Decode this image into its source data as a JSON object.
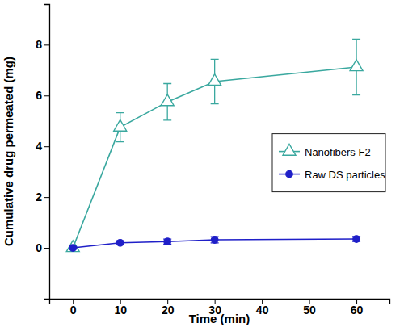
{
  "chart_data": {
    "type": "line",
    "x_label": "Time (min)",
    "y_label": "Cumulative drug permeated (mg)",
    "x": [
      0,
      10,
      20,
      30,
      60
    ],
    "xlim": [
      -5,
      67
    ],
    "xticks": [
      0,
      10,
      20,
      30,
      40,
      50,
      60
    ],
    "ylim": [
      -2,
      9.6
    ],
    "yticks": [
      0,
      2,
      4,
      6,
      8
    ],
    "legend": "right",
    "series": [
      {
        "name": "Nanofibers F2",
        "color": "#3aa89f",
        "marker": "triangle-open",
        "values": [
          0,
          4.75,
          5.75,
          6.55,
          7.12
        ],
        "errors": [
          0,
          0.57,
          0.72,
          0.88,
          1.1
        ]
      },
      {
        "name": "Raw DS particles",
        "color": "#1f1fc8",
        "marker": "circle",
        "values": [
          0,
          0.2,
          0.25,
          0.32,
          0.35
        ],
        "errors": [
          0.05,
          0.08,
          0.1,
          0.12,
          0.1
        ]
      }
    ]
  }
}
